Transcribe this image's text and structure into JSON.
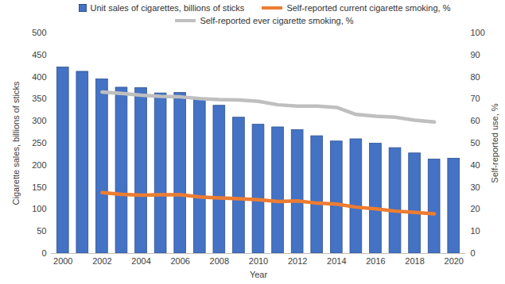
{
  "chart_data": {
    "type": "bar",
    "x_label": "Year",
    "y_label": "Cigarette sales, billions of sticks",
    "y2_label": "Self-reported use, %",
    "categories": [
      "2000",
      null,
      "2002",
      null,
      "2004",
      null,
      "2006",
      null,
      "2008",
      null,
      "2010",
      null,
      "2012",
      null,
      "2014",
      null,
      "2016",
      null,
      "2018",
      null,
      "2020"
    ],
    "series": [
      {
        "name": "Unit sales of cigarettes, billions of sticks",
        "type": "bar",
        "color": "#4472c4",
        "values": [
          422,
          412,
          395,
          376,
          375,
          363,
          364,
          351,
          335,
          308,
          292,
          286,
          280,
          266,
          254,
          259,
          249,
          239,
          227,
          213,
          215
        ]
      },
      {
        "name": "Self-reported current cigarette smoking, %",
        "type": "line",
        "axis": "y2",
        "color": "#ed7d31",
        "values": [
          null,
          null,
          27.6,
          26.8,
          26.4,
          26.6,
          26.6,
          25.6,
          25.2,
          24.8,
          24.4,
          23.6,
          23.8,
          22.8,
          22.4,
          21.0,
          20.2,
          19.2,
          18.6,
          18.0,
          null
        ]
      },
      {
        "name": "Self-reported ever cigarette smoking, %",
        "type": "line",
        "axis": "y2",
        "color": "#bfbfbf",
        "values": [
          null,
          null,
          73.2,
          72.6,
          71.8,
          71.2,
          71.0,
          70.2,
          69.8,
          69.6,
          69.0,
          67.4,
          66.8,
          66.8,
          66.2,
          63.0,
          62.2,
          61.8,
          60.4,
          59.6,
          null
        ]
      }
    ],
    "ylim": [
      0,
      500
    ],
    "yticks": [
      0,
      50,
      100,
      150,
      200,
      250,
      300,
      350,
      400,
      450,
      500
    ],
    "y2lim": [
      0,
      100
    ],
    "y2ticks": [
      0,
      10,
      20,
      30,
      40,
      50,
      60,
      70,
      80,
      90,
      100
    ],
    "grid": false
  }
}
